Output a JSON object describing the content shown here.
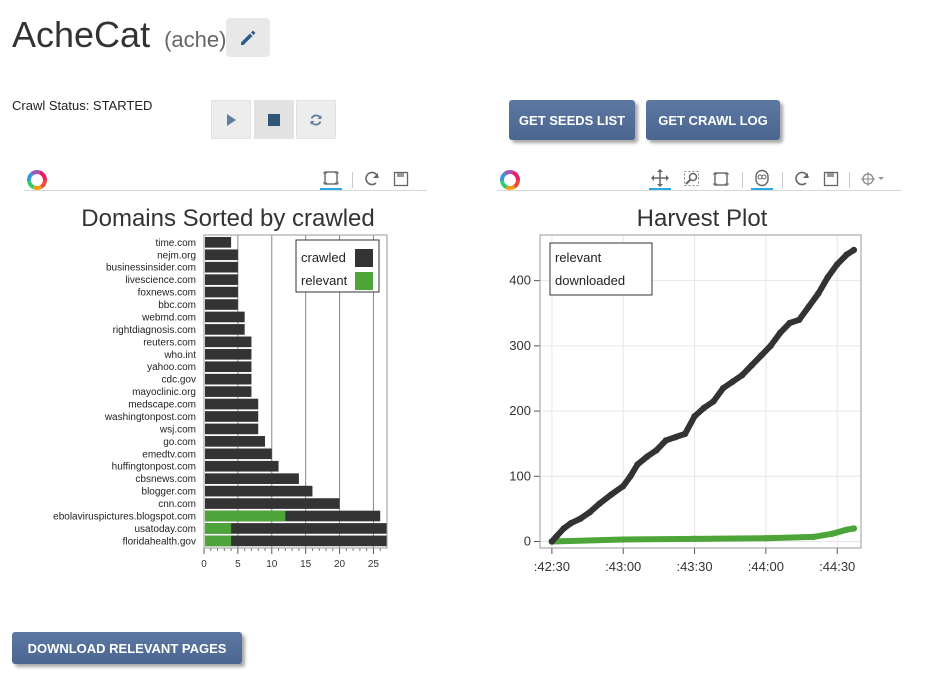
{
  "header": {
    "title": "AcheCat",
    "subtitle": "(ache)",
    "edit_icon": "pencil-icon"
  },
  "crawl": {
    "status_label": "Crawl Status: STARTED",
    "controls": [
      "play-icon",
      "stop-icon",
      "refresh-icon"
    ]
  },
  "buttons": {
    "seeds": "GET SEEDS LIST",
    "log": "GET CRAWL LOG",
    "download": "DOWNLOAD RELEVANT PAGES"
  },
  "colors": {
    "accent_button": "#4e6a94",
    "crawled": "#333333",
    "relevant": "#4da53a",
    "downloaded_line": "#333333"
  },
  "chart_data": [
    {
      "type": "bar",
      "orientation": "horizontal",
      "title": "Domains Sorted by crawled",
      "categories": [
        "time.com",
        "nejm.org",
        "businessinsider.com",
        "livescience.com",
        "foxnews.com",
        "bbc.com",
        "webmd.com",
        "rightdiagnosis.com",
        "reuters.com",
        "who.int",
        "yahoo.com",
        "cdc.gov",
        "mayoclinic.org",
        "medscape.com",
        "washingtonpost.com",
        "wsj.com",
        "go.com",
        "emedtv.com",
        "huffingtonpost.com",
        "cbsnews.com",
        "blogger.com",
        "cnn.com",
        "ebolaviruspictures.blogspot.com",
        "usatoday.com",
        "floridahealth.gov"
      ],
      "series": [
        {
          "name": "crawled",
          "color": "#333333",
          "values": [
            4,
            5,
            5,
            5,
            5,
            5,
            6,
            6,
            7,
            7,
            7,
            7,
            7,
            8,
            8,
            8,
            9,
            10,
            11,
            14,
            16,
            20,
            26,
            27,
            27
          ]
        },
        {
          "name": "relevant",
          "color": "#4da53a",
          "values": [
            0,
            0,
            0,
            0,
            0,
            0,
            0,
            0,
            0,
            0,
            0,
            0,
            0,
            0,
            0,
            0,
            0,
            0,
            0,
            0,
            0,
            0,
            12,
            4,
            4
          ]
        }
      ],
      "xlim": [
        0,
        27
      ],
      "xticks": [
        "0",
        "5",
        "10",
        "15",
        "20",
        "25"
      ],
      "grid": true,
      "legend_placement": "top-right"
    },
    {
      "type": "scatter",
      "title": "Harvest Plot",
      "xticks": [
        ":42:30",
        ":43:00",
        ":43:30",
        ":44:00",
        ":44:30"
      ],
      "xlim_seconds": [
        -5,
        130
      ],
      "ylim": [
        -10,
        470
      ],
      "yticks": [
        "0",
        "100",
        "200",
        "300",
        "400"
      ],
      "series": [
        {
          "name": "relevant",
          "color": "#4da53a",
          "points": [
            [
              0,
              0
            ],
            [
              30,
              3
            ],
            [
              60,
              4
            ],
            [
              90,
              5
            ],
            [
              110,
              7
            ],
            [
              118,
              12
            ],
            [
              124,
              18
            ],
            [
              127,
              20
            ]
          ]
        },
        {
          "name": "downloaded",
          "color": "#333333",
          "points": [
            [
              0,
              0
            ],
            [
              2,
              8
            ],
            [
              5,
              20
            ],
            [
              8,
              28
            ],
            [
              12,
              35
            ],
            [
              16,
              45
            ],
            [
              20,
              58
            ],
            [
              25,
              72
            ],
            [
              30,
              85
            ],
            [
              33,
              100
            ],
            [
              36,
              118
            ],
            [
              40,
              130
            ],
            [
              44,
              140
            ],
            [
              48,
              155
            ],
            [
              52,
              160
            ],
            [
              56,
              165
            ],
            [
              60,
              192
            ],
            [
              64,
              205
            ],
            [
              68,
              215
            ],
            [
              72,
              235
            ],
            [
              76,
              245
            ],
            [
              80,
              255
            ],
            [
              84,
              270
            ],
            [
              88,
              285
            ],
            [
              92,
              300
            ],
            [
              96,
              320
            ],
            [
              100,
              335
            ],
            [
              104,
              340
            ],
            [
              108,
              360
            ],
            [
              112,
              380
            ],
            [
              116,
              405
            ],
            [
              120,
              425
            ],
            [
              124,
              440
            ],
            [
              127,
              447
            ]
          ]
        }
      ],
      "grid": true,
      "legend_placement": "top-left"
    }
  ]
}
